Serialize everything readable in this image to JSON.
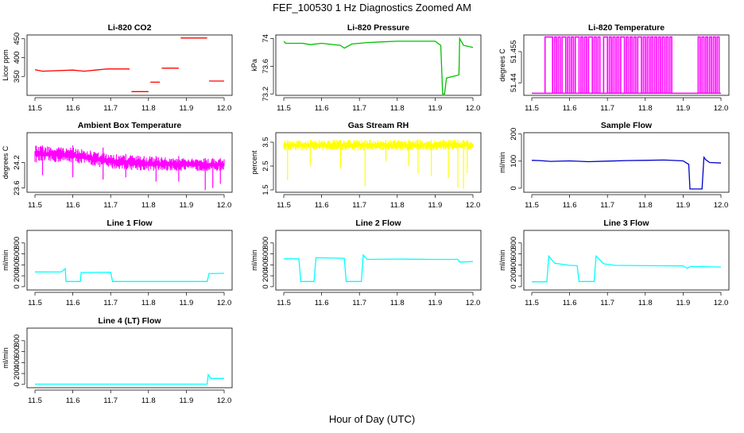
{
  "figure": {
    "title": "FEF_100530  1 Hz Diagnostics Zoomed AM",
    "xlabel": "Hour of Day (UTC)"
  },
  "chart_data": [
    {
      "type": "line",
      "title": "Li-820 CO2",
      "ylabel": "Licor ppm",
      "color": "#ff0000",
      "xlim": [
        11.5,
        12.0
      ],
      "xticks": [
        11.5,
        11.6,
        11.7,
        11.8,
        11.9,
        12.0
      ],
      "ylim": [
        300,
        460
      ],
      "yticks": [
        350,
        400,
        450
      ],
      "segments": [
        [
          [
            11.5,
            368
          ],
          [
            11.52,
            364
          ],
          [
            11.6,
            367
          ],
          [
            11.63,
            364
          ],
          [
            11.66,
            367
          ],
          [
            11.69,
            370
          ],
          [
            11.75,
            370
          ]
        ],
        [
          [
            11.755,
            310
          ],
          [
            11.8,
            310
          ]
        ],
        [
          [
            11.805,
            335
          ],
          [
            11.83,
            335
          ]
        ],
        [
          [
            11.835,
            372
          ],
          [
            11.88,
            372
          ]
        ],
        [
          [
            11.885,
            452
          ],
          [
            11.955,
            452
          ]
        ],
        [
          [
            11.96,
            338
          ],
          [
            12.0,
            338
          ]
        ]
      ]
    },
    {
      "type": "line",
      "title": "Li-820 Pressure",
      "ylabel": "kPa",
      "color": "#00c000",
      "xlim": [
        11.5,
        12.0
      ],
      "xticks": [
        11.5,
        11.6,
        11.7,
        11.8,
        11.9,
        12.0
      ],
      "ylim": [
        73.18,
        74.05
      ],
      "yticks": [
        73.2,
        73.6,
        74.0
      ],
      "segments": [
        [
          [
            11.5,
            73.96
          ],
          [
            11.505,
            73.93
          ],
          [
            11.55,
            73.93
          ],
          [
            11.57,
            73.91
          ],
          [
            11.6,
            73.93
          ],
          [
            11.65,
            73.9
          ],
          [
            11.66,
            73.86
          ],
          [
            11.68,
            73.92
          ],
          [
            11.72,
            73.94
          ],
          [
            11.76,
            73.95
          ],
          [
            11.8,
            73.96
          ],
          [
            11.85,
            73.96
          ],
          [
            11.9,
            73.96
          ],
          [
            11.915,
            73.9
          ],
          [
            11.92,
            73.2
          ],
          [
            11.925,
            73.2
          ],
          [
            11.93,
            73.43
          ],
          [
            11.96,
            73.47
          ],
          [
            11.963,
            73.48
          ],
          [
            11.965,
            74.0
          ],
          [
            11.975,
            73.9
          ],
          [
            12.0,
            73.87
          ]
        ]
      ]
    },
    {
      "type": "line",
      "title": "Li-820 Temperature",
      "ylabel": "degrees C",
      "color": "#ff00ff",
      "xlim": [
        11.5,
        12.0
      ],
      "xticks": [
        11.5,
        11.6,
        11.7,
        11.8,
        11.9,
        12.0
      ],
      "ylim": [
        51.434,
        51.463
      ],
      "yticks": [
        51.44,
        51.455
      ],
      "levels": [
        51.435,
        51.462
      ],
      "high_intervals": [
        [
          11.535,
          11.555
        ],
        [
          11.56,
          11.565
        ],
        [
          11.57,
          11.575
        ],
        [
          11.58,
          11.59
        ],
        [
          11.595,
          11.6
        ],
        [
          11.605,
          11.61
        ],
        [
          11.615,
          11.625
        ],
        [
          11.63,
          11.635
        ],
        [
          11.64,
          11.645
        ],
        [
          11.65,
          11.66
        ],
        [
          11.665,
          11.67
        ],
        [
          11.675,
          11.68
        ],
        [
          11.69,
          11.7
        ],
        [
          11.705,
          11.71
        ],
        [
          11.715,
          11.72
        ],
        [
          11.725,
          11.73
        ],
        [
          11.735,
          11.745
        ],
        [
          11.75,
          11.755
        ],
        [
          11.76,
          11.765
        ],
        [
          11.77,
          11.775
        ],
        [
          11.78,
          11.79
        ],
        [
          11.795,
          11.8
        ],
        [
          11.805,
          11.81
        ],
        [
          11.815,
          11.82
        ],
        [
          11.825,
          11.83
        ],
        [
          11.835,
          11.84
        ],
        [
          11.845,
          11.85
        ],
        [
          11.855,
          11.86
        ],
        [
          11.865,
          11.87
        ],
        [
          11.94,
          11.945
        ],
        [
          11.95,
          11.955
        ],
        [
          11.96,
          11.965
        ],
        [
          11.97,
          11.975
        ],
        [
          11.98,
          11.985
        ],
        [
          11.99,
          11.995
        ]
      ]
    },
    {
      "type": "line",
      "title": "Ambient Box Temperature",
      "ylabel": "degrees C",
      "color": "#ff00ff",
      "xlim": [
        11.5,
        12.0
      ],
      "xticks": [
        11.5,
        11.6,
        11.7,
        11.8,
        11.9,
        12.0
      ],
      "ylim": [
        23.5,
        24.9
      ],
      "yticks": [
        23.6,
        24.2
      ],
      "band": [
        [
          11.5,
          24.2,
          24.6
        ],
        [
          11.6,
          24.2,
          24.55
        ],
        [
          11.7,
          24.05,
          24.4
        ],
        [
          11.8,
          24.0,
          24.35
        ],
        [
          11.9,
          24.0,
          24.3
        ],
        [
          12.0,
          24.0,
          24.3
        ]
      ],
      "excursions": [
        [
          11.52,
          23.9
        ],
        [
          11.6,
          23.85
        ],
        [
          11.68,
          23.8
        ],
        [
          11.74,
          23.85
        ],
        [
          11.82,
          23.75
        ],
        [
          11.88,
          23.75
        ],
        [
          11.95,
          23.55
        ],
        [
          11.97,
          23.6
        ],
        [
          11.99,
          23.7
        ]
      ]
    },
    {
      "type": "line",
      "title": "Gas Stream RH",
      "ylabel": "percent",
      "color": "#ffff00",
      "xlim": [
        11.5,
        12.0
      ],
      "xticks": [
        11.5,
        11.6,
        11.7,
        11.8,
        11.9,
        12.0
      ],
      "ylim": [
        1.4,
        3.9
      ],
      "yticks": [
        1.5,
        2.5,
        3.5
      ],
      "band": [
        [
          11.5,
          3.15,
          3.6
        ],
        [
          12.0,
          3.15,
          3.6
        ]
      ],
      "dips": [
        [
          11.51,
          1.9
        ],
        [
          11.57,
          2.5
        ],
        [
          11.65,
          2.4
        ],
        [
          11.715,
          1.65
        ],
        [
          11.77,
          2.7
        ],
        [
          11.83,
          2.5
        ],
        [
          11.855,
          2.2
        ],
        [
          11.89,
          2.1
        ],
        [
          11.935,
          2.0
        ],
        [
          11.96,
          1.6
        ],
        [
          11.975,
          1.55
        ],
        [
          11.985,
          2.2
        ]
      ]
    },
    {
      "type": "line",
      "title": "Sample Flow",
      "ylabel": "ml/min",
      "color": "#0000cc",
      "xlim": [
        11.5,
        12.0
      ],
      "xticks": [
        11.5,
        11.6,
        11.7,
        11.8,
        11.9,
        12.0
      ],
      "ylim": [
        -15,
        205
      ],
      "yticks": [
        0,
        100,
        200
      ],
      "segments": [
        [
          [
            11.5,
            103
          ],
          [
            11.52,
            102
          ],
          [
            11.55,
            99
          ],
          [
            11.6,
            101
          ],
          [
            11.65,
            98
          ],
          [
            11.7,
            100
          ],
          [
            11.75,
            102
          ],
          [
            11.8,
            103
          ],
          [
            11.85,
            104
          ],
          [
            11.9,
            101
          ],
          [
            11.915,
            88
          ],
          [
            11.918,
            -3
          ],
          [
            11.95,
            -3
          ],
          [
            11.955,
            114
          ],
          [
            11.96,
            105
          ],
          [
            11.97,
            95
          ],
          [
            12.0,
            93
          ]
        ]
      ]
    },
    {
      "type": "line",
      "title": "Line 1 Flow",
      "ylabel": "ml/min",
      "color": "#00ffff",
      "xlim": [
        11.5,
        12.0
      ],
      "xticks": [
        11.5,
        11.6,
        11.7,
        11.8,
        11.9,
        12.0
      ],
      "ylim": [
        -60,
        1030
      ],
      "yticks": [
        0,
        200,
        400,
        600,
        800
      ],
      "segments": [
        [
          [
            11.5,
            270
          ],
          [
            11.57,
            272
          ],
          [
            11.58,
            330
          ],
          [
            11.582,
            95
          ],
          [
            11.62,
            95
          ],
          [
            11.622,
            260
          ],
          [
            11.7,
            265
          ],
          [
            11.705,
            95
          ],
          [
            11.955,
            95
          ],
          [
            11.96,
            240
          ],
          [
            12.0,
            245
          ]
        ]
      ]
    },
    {
      "type": "line",
      "title": "Line 2 Flow",
      "ylabel": "ml/min",
      "color": "#00ffff",
      "xlim": [
        11.5,
        12.0
      ],
      "xticks": [
        11.5,
        11.6,
        11.7,
        11.8,
        11.9,
        12.0
      ],
      "ylim": [
        -60,
        1030
      ],
      "yticks": [
        0,
        200,
        400,
        600,
        800
      ],
      "segments": [
        [
          [
            11.5,
            510
          ],
          [
            11.54,
            510
          ],
          [
            11.545,
            95
          ],
          [
            11.58,
            95
          ],
          [
            11.585,
            530
          ],
          [
            11.66,
            520
          ],
          [
            11.665,
            95
          ],
          [
            11.705,
            95
          ],
          [
            11.71,
            580
          ],
          [
            11.72,
            500
          ],
          [
            11.8,
            505
          ],
          [
            11.9,
            500
          ],
          [
            11.96,
            500
          ],
          [
            11.965,
            450
          ],
          [
            12.0,
            460
          ]
        ]
      ]
    },
    {
      "type": "line",
      "title": "Line 3 Flow",
      "ylabel": "ml/min",
      "color": "#00ffff",
      "xlim": [
        11.5,
        12.0
      ],
      "xticks": [
        11.5,
        11.6,
        11.7,
        11.8,
        11.9,
        12.0
      ],
      "ylim": [
        -60,
        1030
      ],
      "yticks": [
        0,
        200,
        400,
        600,
        800
      ],
      "segments": [
        [
          [
            11.5,
            90
          ],
          [
            11.54,
            90
          ],
          [
            11.545,
            560
          ],
          [
            11.56,
            430
          ],
          [
            11.6,
            390
          ],
          [
            11.62,
            385
          ],
          [
            11.625,
            95
          ],
          [
            11.665,
            95
          ],
          [
            11.67,
            560
          ],
          [
            11.69,
            420
          ],
          [
            11.72,
            390
          ],
          [
            11.8,
            385
          ],
          [
            11.9,
            380
          ],
          [
            11.91,
            340
          ],
          [
            11.92,
            370
          ],
          [
            12.0,
            360
          ]
        ]
      ]
    },
    {
      "type": "line",
      "title": "Line 4 (LT) Flow",
      "ylabel": "ml/min",
      "color": "#00ffff",
      "xlim": [
        11.5,
        12.0
      ],
      "xticks": [
        11.5,
        11.6,
        11.7,
        11.8,
        11.9,
        12.0
      ],
      "ylim": [
        -60,
        1030
      ],
      "yticks": [
        0,
        200,
        400,
        600,
        800
      ],
      "segments": [
        [
          [
            11.5,
            5
          ],
          [
            11.955,
            5
          ],
          [
            11.958,
            180
          ],
          [
            11.965,
            110
          ],
          [
            12.0,
            110
          ]
        ]
      ]
    }
  ]
}
